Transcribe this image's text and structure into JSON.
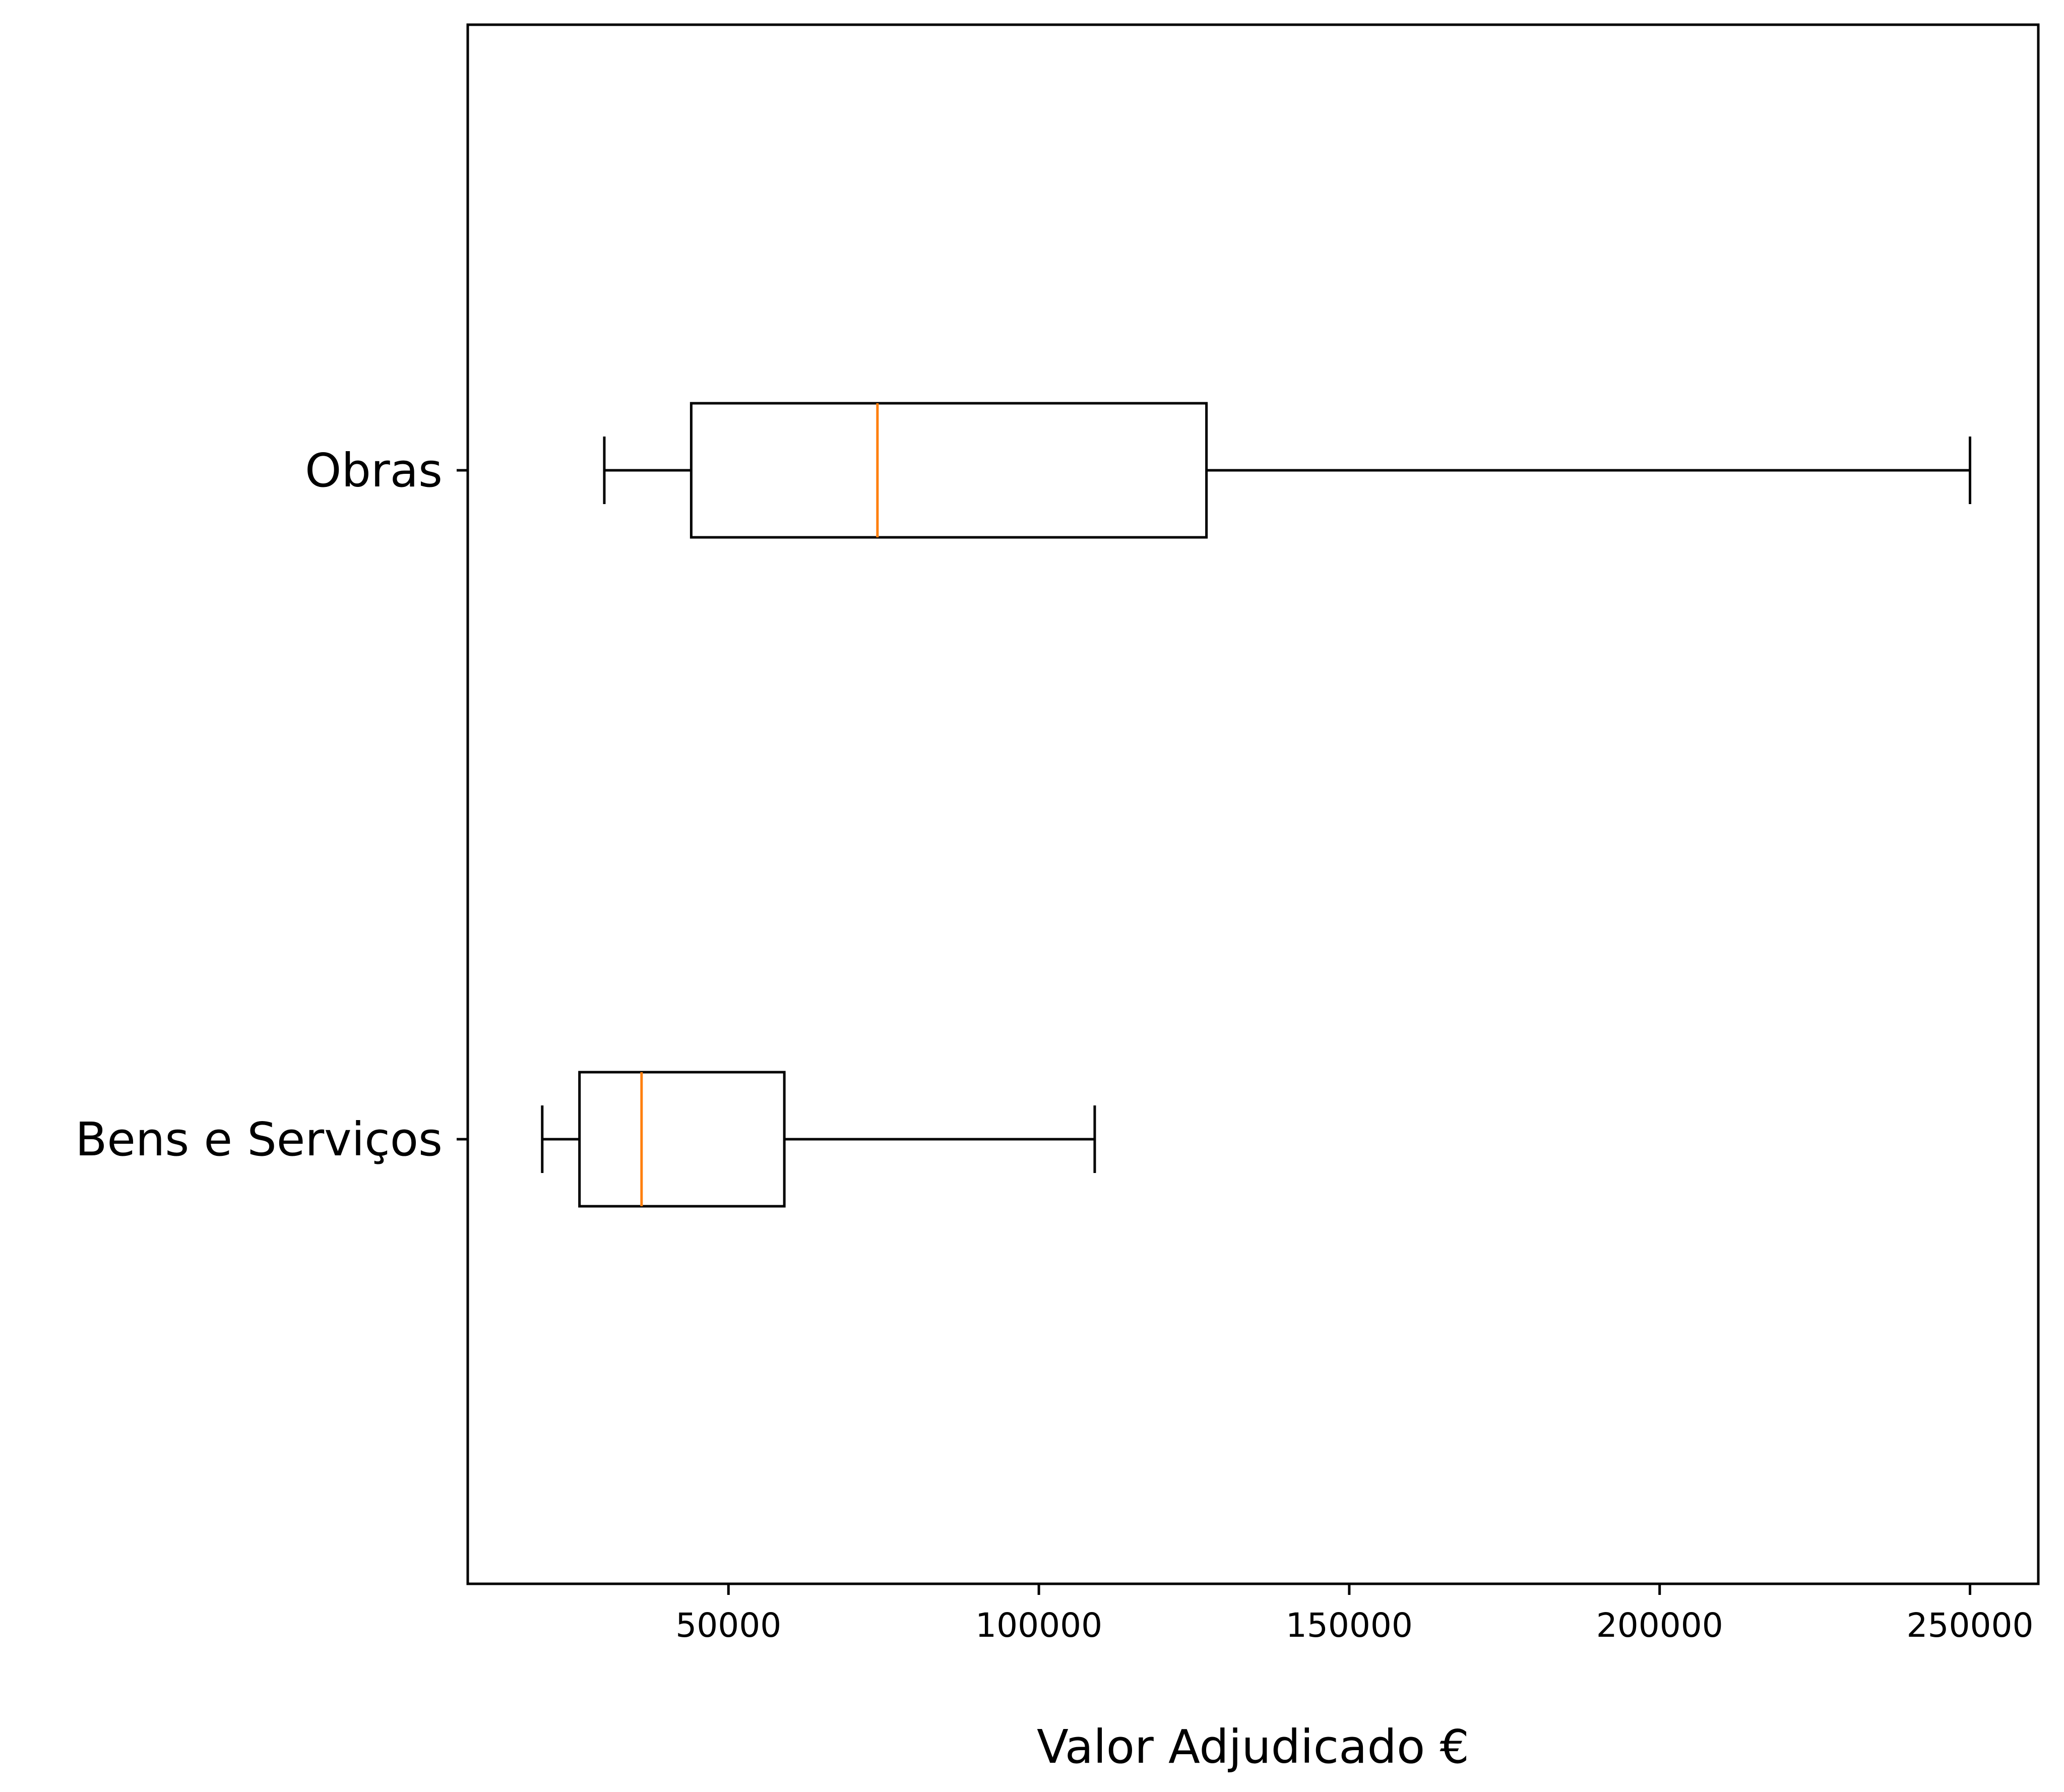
{
  "chart_data": {
    "type": "boxplot",
    "orientation": "horizontal",
    "title": "",
    "xlabel": "Valor Adjudicado €",
    "ylabel": "",
    "xlim": [
      8000,
      261000
    ],
    "xticks": [
      50000,
      100000,
      150000,
      200000,
      250000
    ],
    "xtick_labels": [
      "50000",
      "100000",
      "150000",
      "200000",
      "250000"
    ],
    "grid": false,
    "categories": [
      "Obras",
      "Bens e Serviços"
    ],
    "boxes": [
      {
        "category": "Obras",
        "whisker_low": 30000,
        "q1": 44000,
        "median": 74000,
        "q3": 127000,
        "whisker_high": 250000
      },
      {
        "category": "Bens e Serviços",
        "whisker_low": 20000,
        "q1": 26000,
        "median": 36000,
        "q3": 59000,
        "whisker_high": 109000
      }
    ],
    "colors": {
      "box": "#000000",
      "median": "#ff7f0e",
      "whisker": "#000000"
    }
  }
}
